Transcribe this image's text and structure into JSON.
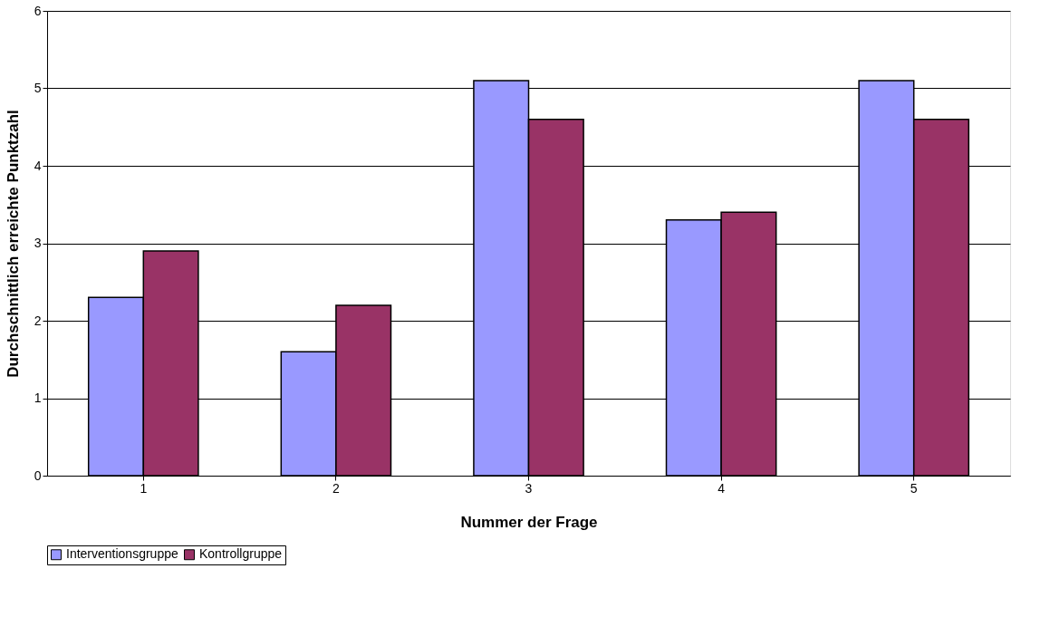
{
  "chart_data": {
    "type": "bar",
    "xlabel": "Nummer der Frage",
    "ylabel": "Durchschnittlich erreichte Punktzahl",
    "categories": [
      "1",
      "2",
      "3",
      "4",
      "5"
    ],
    "series": [
      {
        "name": "Interventionsgruppe",
        "color": "#9999ff",
        "values": [
          2.3,
          1.6,
          5.1,
          3.3,
          5.1
        ]
      },
      {
        "name": "Kontrollgruppe",
        "color": "#993366",
        "values": [
          2.9,
          2.2,
          4.6,
          3.4,
          4.6
        ]
      }
    ],
    "ylim": [
      0,
      6
    ],
    "yticks": [
      0,
      1,
      2,
      3,
      4,
      5,
      6
    ],
    "grid": "y",
    "legend": "bottom"
  }
}
